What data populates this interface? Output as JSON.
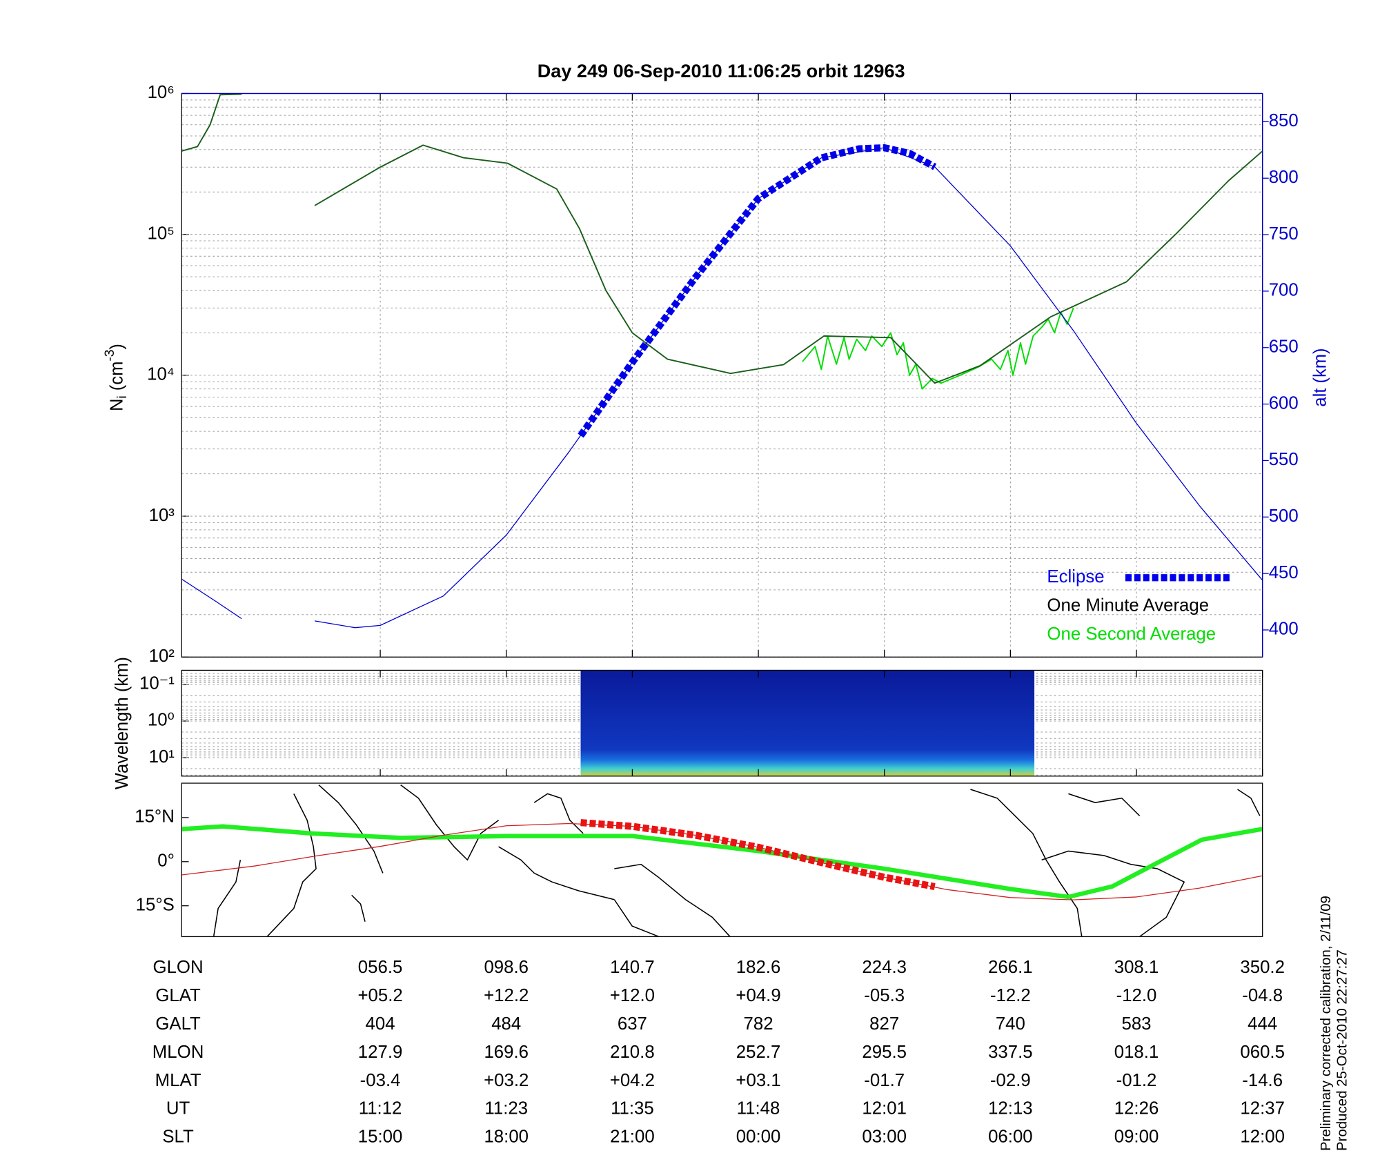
{
  "chart_data": [
    {
      "type": "line",
      "title": "Day 249  06-Sep-2010 11:06:25   orbit 12963",
      "ylabel_parts": [
        "N",
        "i",
        " (cm",
        "-3",
        ")"
      ],
      "y2label": "alt (km)",
      "xlim": [
        -1.576,
        7
      ],
      "xticks": [
        0,
        1,
        2,
        3,
        4,
        5,
        6,
        7
      ],
      "log": true,
      "grid": true,
      "ylim": [
        100,
        1000000
      ],
      "yticks": [
        {
          "value": 100,
          "label": "10²"
        },
        {
          "value": 1000,
          "label": "10³"
        },
        {
          "value": 10000,
          "label": "10⁴"
        },
        {
          "value": 100000,
          "label": "10⁵"
        },
        {
          "value": 1000000,
          "label": "10⁶"
        }
      ],
      "y2lim": [
        376,
        875
      ],
      "y2ticks": [
        400,
        450,
        500,
        550,
        600,
        650,
        700,
        750,
        800,
        850
      ],
      "series": [
        {
          "color": "#0000cc",
          "axis": "y2",
          "width": 1,
          "x": [
            -1.576,
            -1.3,
            -1.1,
            -0.8,
            -0.52,
            -0.2,
            0,
            0.5,
            1,
            1.5,
            2,
            2.5,
            3,
            3.5,
            4,
            4.4,
            5,
            5.5,
            6,
            6.5,
            7
          ],
          "values": [
            445,
            425,
            410,
            null,
            408,
            402,
            404,
            430,
            484,
            558,
            637,
            712,
            782,
            818,
            827,
            810,
            740,
            665,
            583,
            510,
            444
          ]
        },
        {
          "name": "Eclipse",
          "color": "#0000ee",
          "axis": "y2",
          "width": 8,
          "dash": true,
          "x": [
            1.59,
            2,
            2.5,
            3,
            3.5,
            3.8,
            4,
            4.2,
            4.4
          ],
          "values": [
            572,
            637,
            712,
            782,
            818,
            826,
            827,
            822,
            810
          ]
        },
        {
          "name": "One Minute Average",
          "color": "#1a5e1a",
          "label_color": "#000000",
          "width": 1.5,
          "x": [
            -1.576,
            -1.45,
            -1.35,
            -1.27,
            -1.1,
            -0.8,
            -0.52,
            0,
            0.34,
            0.66,
            1.01,
            1.4,
            1.58,
            1.79,
            2.0,
            2.28,
            2.78,
            3.2,
            3.52,
            4.05,
            4.4,
            4.76,
            5.32,
            5.92,
            6.31,
            6.73,
            7
          ],
          "values": [
            390000,
            420000,
            600000,
            980000,
            990000,
            null,
            160000,
            300000,
            430000,
            350000,
            320000,
            210000,
            110000,
            40000,
            20000,
            13000,
            10300,
            11900,
            19000,
            18500,
            8800,
            11700,
            26000,
            46000,
            100000,
            240000,
            390000
          ]
        },
        {
          "name": "One Second Average",
          "color": "#00dd00",
          "width": 1.5,
          "x": [
            3.35,
            3.45,
            3.5,
            3.55,
            3.62,
            3.68,
            3.72,
            3.78,
            3.85,
            3.9,
            3.98,
            4.05,
            4.1,
            4.15,
            4.2,
            4.25,
            4.3,
            4.38,
            4.45,
            4.6,
            4.75,
            4.85,
            4.92,
            4.98,
            5.02,
            5.08,
            5.12,
            5.18,
            5.25,
            5.3,
            5.35,
            5.4,
            5.45,
            5.5
          ],
          "values": [
            12500,
            16000,
            11000,
            19000,
            12000,
            18500,
            13000,
            18000,
            15000,
            19000,
            16000,
            20000,
            14000,
            17000,
            10000,
            12000,
            8000,
            9500,
            8800,
            10000,
            11500,
            13000,
            11000,
            15000,
            10000,
            17000,
            12000,
            19000,
            22000,
            25000,
            20000,
            28000,
            23000,
            30000
          ]
        }
      ]
    },
    {
      "type": "spectrogram",
      "ylabel": "Wavelength (km)",
      "xlim": [
        -1.576,
        7
      ],
      "xticks": [
        0,
        1,
        2,
        3,
        4,
        5,
        6,
        7
      ],
      "log": true,
      "inverted": true,
      "grid": true,
      "ylim": [
        0.041,
        32
      ],
      "yticks": [
        {
          "value": 0.1,
          "label": "10⁻¹"
        },
        {
          "value": 1,
          "label": "10⁰"
        },
        {
          "value": 10,
          "label": "10¹"
        }
      ],
      "extent_x": [
        1.59,
        5.19
      ]
    },
    {
      "type": "map",
      "xlim": [
        -1.576,
        7
      ],
      "xticks": [
        0,
        1,
        2,
        3,
        4,
        5,
        6,
        7
      ],
      "ylim": [
        -25.5,
        26.7
      ],
      "yticks": [
        {
          "value": 15,
          "label": "15°N"
        },
        {
          "value": 0,
          "label": "0°"
        },
        {
          "value": -15,
          "label": "15°S"
        }
      ],
      "series": [
        {
          "color": "#cc2222",
          "width": 1,
          "x": [
            -1.576,
            -1,
            -0.5,
            0,
            0.5,
            1,
            1.5,
            2,
            2.5,
            3,
            3.5,
            4,
            4.5,
            5,
            5.5,
            6,
            6.5,
            7
          ],
          "values": [
            -4.5,
            -1.5,
            2,
            5.2,
            9,
            12.2,
            13,
            12.0,
            9,
            4.9,
            -0.3,
            -5.3,
            -9.5,
            -12.2,
            -13,
            -12.0,
            -9,
            -4.8
          ]
        },
        {
          "color": "#ee1111",
          "width": 8,
          "dash": true,
          "x": [
            1.59,
            2,
            2.5,
            3,
            3.5,
            4,
            4.4
          ],
          "values": [
            13.3,
            12.0,
            9,
            4.9,
            -0.3,
            -5.3,
            -8.5
          ]
        },
        {
          "color": "#22ee22",
          "width": 5,
          "x": [
            -1.576,
            -1.25,
            -0.54,
            0.16,
            1.01,
            2,
            3,
            4,
            5,
            5.46,
            5.81,
            6.17,
            6.52,
            7
          ],
          "values": [
            11.1,
            12,
            9.6,
            8.1,
            8.7,
            8.7,
            3.6,
            -2.4,
            -9.3,
            -12,
            -8.4,
            -0.3,
            7.5,
            11.1
          ]
        }
      ]
    }
  ],
  "table": {
    "rows": [
      {
        "label": "GLON",
        "values": [
          "056.5",
          "098.6",
          "140.7",
          "182.6",
          "224.3",
          "266.1",
          "308.1",
          "350.2"
        ]
      },
      {
        "label": "GLAT",
        "values": [
          "+05.2",
          "+12.2",
          "+12.0",
          "+04.9",
          "-05.3",
          "-12.2",
          "-12.0",
          "-04.8"
        ]
      },
      {
        "label": "GALT",
        "values": [
          "404",
          "484",
          "637",
          "782",
          "827",
          "740",
          "583",
          "444"
        ]
      },
      {
        "label": "MLON",
        "values": [
          "127.9",
          "169.6",
          "210.8",
          "252.7",
          "295.5",
          "337.5",
          "018.1",
          "060.5"
        ]
      },
      {
        "label": "MLAT",
        "values": [
          "-03.4",
          "+03.2",
          "+04.2",
          "+03.1",
          "-01.7",
          "-02.9",
          "-01.2",
          "-14.6"
        ]
      },
      {
        "label": "UT",
        "values": [
          "11:12",
          "11:23",
          "11:35",
          "11:48",
          "12:01",
          "12:13",
          "12:26",
          "12:37"
        ]
      },
      {
        "label": "SLT",
        "values": [
          "15:00",
          "18:00",
          "21:00",
          "00:00",
          "03:00",
          "06:00",
          "09:00",
          "12:00"
        ]
      }
    ]
  },
  "notes": [
    "Preliminary corrected calibration, 2/11/09",
    "Produced 25-Oct-2010 22:27:27"
  ]
}
